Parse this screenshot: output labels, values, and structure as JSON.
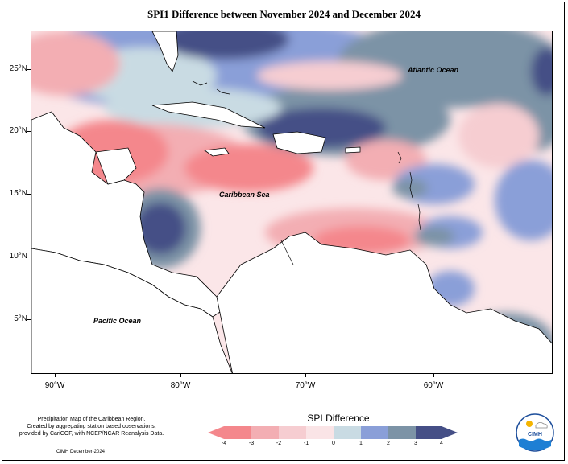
{
  "title": "SPI1 Difference between November 2024 and December 2024",
  "axes": {
    "y_labels": [
      "25°N",
      "20°N",
      "15°N",
      "10°N",
      "5°N"
    ],
    "x_labels": [
      "90°W",
      "80°W",
      "70°W",
      "60°W"
    ]
  },
  "ocean_labels": {
    "atlantic": "Atlantic Ocean",
    "caribbean": "Caribbean Sea",
    "pacific": "Pacific Ocean"
  },
  "note": {
    "line1": "Precipitation Map of the Caribbean Region.",
    "line2": "Created by aggregating station based observations,",
    "line3": "provided by CariCOF, with NCEP/NCAR Reanalysis Data."
  },
  "credit": "CIMH December-2024",
  "legend": {
    "title": "SPI Difference",
    "ticks": [
      "-4",
      "-3",
      "-2",
      "-1",
      "0",
      "1",
      "2",
      "3",
      "4"
    ],
    "colors": [
      "#f4878c",
      "#f3aeb3",
      "#f6cdd1",
      "#fae4e6",
      "#ffffff",
      "#c9dbe3",
      "#8a9fd8",
      "#7c93a6",
      "#454f86"
    ]
  },
  "logo": {
    "name": "CIMH"
  },
  "map": {
    "type": "SPI difference contour map",
    "region": "Caribbean"
  }
}
